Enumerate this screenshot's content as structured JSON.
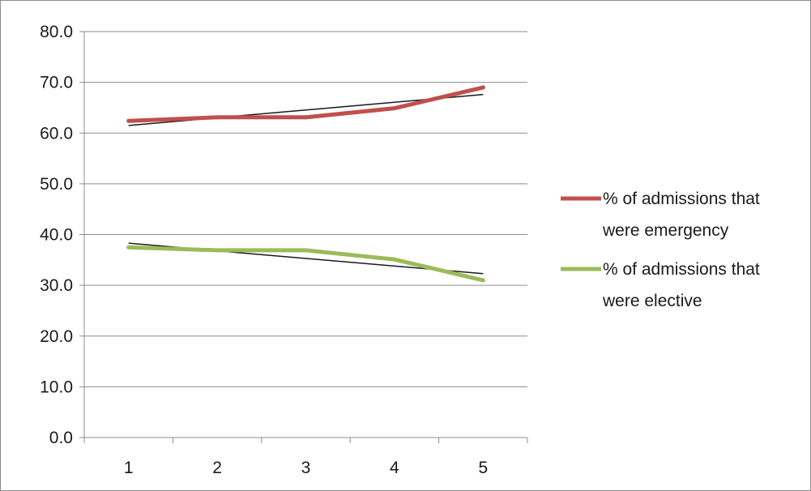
{
  "chart_data": {
    "type": "line",
    "x": [
      1,
      2,
      3,
      4,
      5
    ],
    "series": [
      {
        "name": "% of admissions that were emergency",
        "values": [
          62.4,
          63.1,
          63.1,
          64.9,
          69.0
        ],
        "color": "#c0504d"
      },
      {
        "name": "% of admissions that were elective",
        "values": [
          37.5,
          36.9,
          36.9,
          35.1,
          31.0
        ],
        "color": "#9bbb59"
      }
    ],
    "trendlines": [
      {
        "for": "% of admissions that were emergency",
        "start": 61.5,
        "end": 67.6,
        "color": "#1a1a1a"
      },
      {
        "for": "% of admissions that were elective",
        "start": 38.3,
        "end": 32.3,
        "color": "#1a1a1a"
      }
    ],
    "x_tick_labels": [
      "1",
      "2",
      "3",
      "4",
      "5"
    ],
    "y_tick_labels": [
      "0.0",
      "10.0",
      "20.0",
      "30.0",
      "40.0",
      "50.0",
      "60.0",
      "70.0",
      "80.0"
    ],
    "ylim": [
      0,
      80
    ],
    "grid": "horizontal",
    "legend": "right",
    "title": "",
    "xlabel": "",
    "ylabel": "",
    "legend_lines": [
      [
        "% of admissions that",
        "were emergency"
      ],
      [
        "% of admissions that",
        "were elective"
      ]
    ]
  }
}
